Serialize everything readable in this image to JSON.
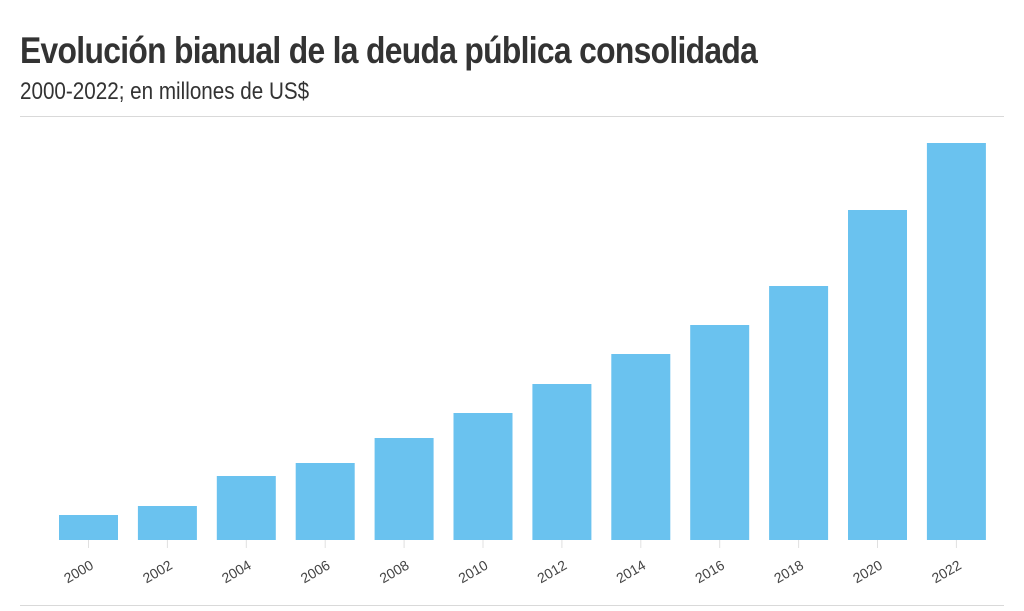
{
  "header": {
    "title": "Evolución bianual de la deuda pública consolidada",
    "subtitle": "2000-2022; en millones de US$"
  },
  "colors": {
    "bar": "#6ac2ef",
    "text": "#333333",
    "tick_label": "#444444",
    "tick": "#e0e0e0",
    "divider": "#d9d9d9"
  },
  "chart_data": {
    "type": "bar",
    "title": "Evolución bianual de la deuda pública consolidada",
    "subtitle": "2000-2022; en millones de US$",
    "xlabel": "",
    "ylabel": "",
    "categories": [
      "2000",
      "2002",
      "2004",
      "2006",
      "2008",
      "2010",
      "2012",
      "2014",
      "2016",
      "2018",
      "2020",
      "2022"
    ],
    "values": [
      25,
      34,
      64,
      77,
      102,
      127,
      156,
      186,
      215,
      254,
      330,
      397
    ],
    "value_note": "relative magnitudes; no y-axis scale shown",
    "ylim": [
      0,
      397
    ],
    "grid": false,
    "legend": "none",
    "y_axis_visible": false
  }
}
